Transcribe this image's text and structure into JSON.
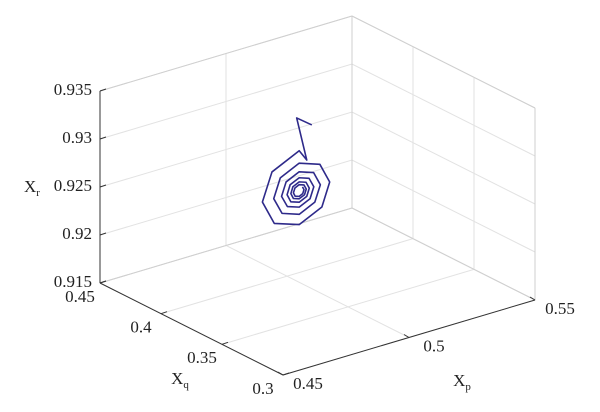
{
  "chart_data": {
    "type": "line3d",
    "xlabel": {
      "text": "X",
      "sub": "p"
    },
    "ylabel": {
      "text": "X",
      "sub": "q"
    },
    "zlabel": {
      "text": "X",
      "sub": "r"
    },
    "xlim": [
      0.45,
      0.55
    ],
    "xticks": [
      0.45,
      0.5,
      0.55
    ],
    "ylim": [
      0.3,
      0.45
    ],
    "yticks": [
      0.3,
      0.35,
      0.4,
      0.45
    ],
    "zlim": [
      0.915,
      0.935
    ],
    "zticks": [
      0.915,
      0.92,
      0.925,
      0.93,
      0.935
    ],
    "grid": true,
    "color": "#2e2a8a",
    "x": [
      0.505,
      0.499,
      0.503,
      0.5,
      0.4892,
      0.4854,
      0.4901,
      0.5,
      0.509,
      0.5121,
      0.5082,
      0.5,
      0.4925,
      0.4899,
      0.4932,
      0.5,
      0.5062,
      0.5084,
      0.5057,
      0.5,
      0.4948,
      0.493,
      0.4953,
      0.5,
      0.5043,
      0.5058,
      0.5039,
      0.5,
      0.4964,
      0.4952,
      0.4967,
      0.5,
      0.503,
      0.504,
      0.5027,
      0.5,
      0.4975,
      0.4967,
      0.4977,
      0.5,
      0.5021,
      0.5028,
      0.5019,
      0.5,
      0.4983,
      0.4977,
      0.4984,
      0.5,
      0.5014,
      0.5019,
      0.5013
    ],
    "y": [
      0.39,
      0.39,
      0.39,
      0.39,
      0.39,
      0.39,
      0.39,
      0.39,
      0.39,
      0.39,
      0.39,
      0.39,
      0.39,
      0.39,
      0.39,
      0.39,
      0.39,
      0.39,
      0.39,
      0.39,
      0.39,
      0.39,
      0.39,
      0.39,
      0.39,
      0.39,
      0.39,
      0.39,
      0.39,
      0.39,
      0.39,
      0.39,
      0.39,
      0.39,
      0.39,
      0.39,
      0.39,
      0.39,
      0.39,
      0.39,
      0.39,
      0.39,
      0.39,
      0.39,
      0.39,
      0.39,
      0.39,
      0.39,
      0.39,
      0.39,
      0.39
    ],
    "z": [
      0.931,
      0.9322,
      0.9275,
      0.9287,
      0.92734,
      0.9245,
      0.92191,
      0.92101,
      0.92214,
      0.9245,
      0.92665,
      0.92741,
      0.92646,
      0.9245,
      0.92271,
      0.92208,
      0.92287,
      0.9245,
      0.92599,
      0.92651,
      0.92586,
      0.9245,
      0.92326,
      0.92283,
      0.92337,
      0.9245,
      0.92553,
      0.92589,
      0.92544,
      0.9245,
      0.92364,
      0.92334,
      0.92372,
      0.9245,
      0.92521,
      0.92546,
      0.92515,
      0.9245,
      0.92391,
      0.9237,
      0.92396,
      0.9245,
      0.92499,
      0.92517,
      0.92495,
      0.9245,
      0.92409,
      0.92395,
      0.92413,
      0.9245,
      0.92484
    ]
  }
}
